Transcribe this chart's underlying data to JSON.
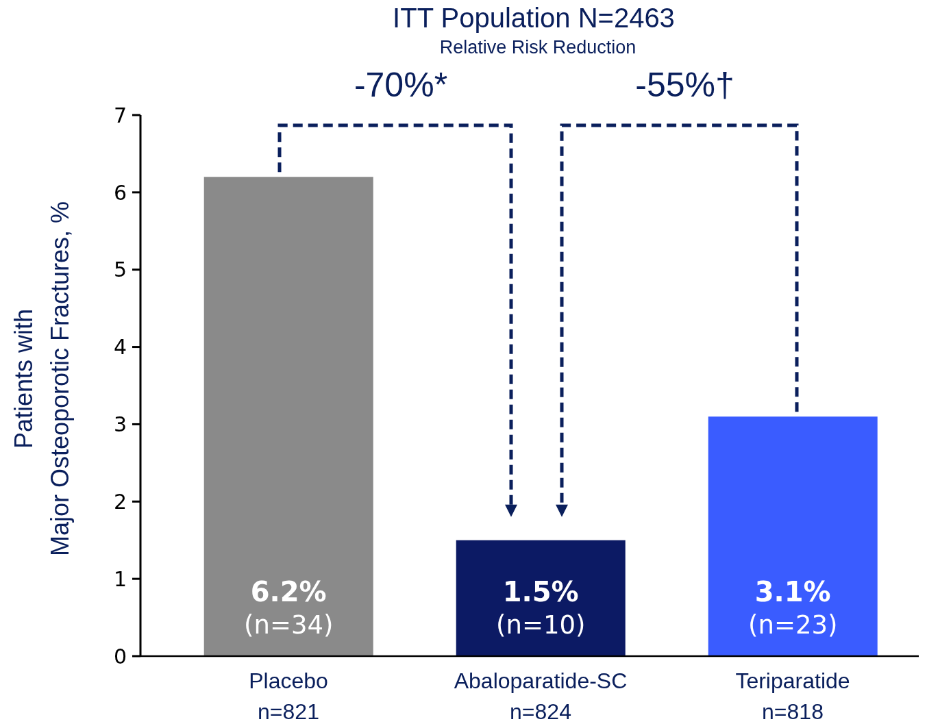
{
  "chart_data": {
    "type": "bar",
    "title": "ITT Population N=2463",
    "subtitle": "Relative Risk Reduction",
    "ylabel": "Patients with\nMajor Osteoporotic Fractures, %",
    "categories": [
      "Placebo\nn=821",
      "Abaloparatide-SC\nn=824",
      "Teriparatide\nn=818"
    ],
    "values": [
      6.2,
      1.5,
      3.1
    ],
    "colors": [
      "#8a8a8a",
      "#0c1a64",
      "#3a5cff"
    ],
    "value_labels": [
      "6.2%\n(n=34)",
      "1.5%\n(n=10)",
      "3.1%\n(n=23)"
    ],
    "annotations": [
      "-70%*",
      "-55%†"
    ],
    "ylim": [
      0,
      7
    ],
    "yticks": [
      0,
      1,
      2,
      3,
      4,
      5,
      6,
      7
    ]
  }
}
